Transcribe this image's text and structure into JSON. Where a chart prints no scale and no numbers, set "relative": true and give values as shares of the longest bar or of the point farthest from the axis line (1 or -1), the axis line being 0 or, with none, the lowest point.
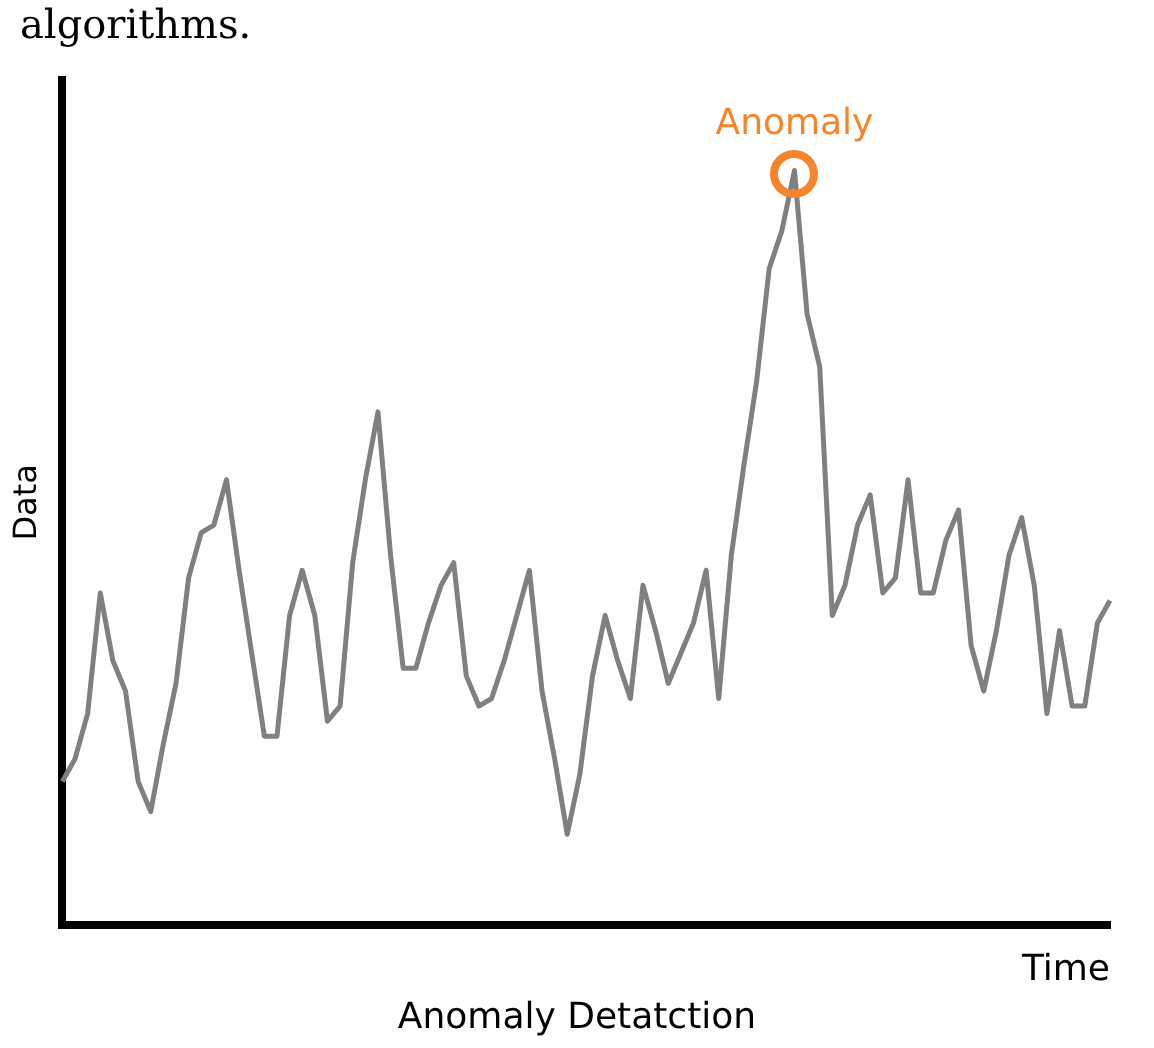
{
  "chart_data": {
    "type": "line",
    "relative": true,
    "title": "Anomaly Detatction",
    "xlabel": "Time",
    "ylabel": "Data",
    "legend": false,
    "grid": false,
    "marker": "none",
    "line_style": "solid",
    "annotations": [
      "algorithms.",
      {
        "text": "Anomaly",
        "y": 1
      }
    ],
    "categories": [
      null,
      null,
      null,
      null,
      null,
      null,
      null,
      null,
      null,
      null,
      null,
      null,
      null,
      null,
      null,
      null,
      null,
      null,
      null,
      null,
      null,
      null,
      null,
      null,
      null,
      null,
      null,
      null,
      null,
      null,
      null,
      null,
      null,
      null,
      null,
      null,
      null,
      null,
      null,
      null,
      null,
      null,
      null,
      null,
      null,
      null,
      null,
      null,
      null,
      null,
      null,
      null,
      null,
      null,
      null,
      null,
      null,
      null,
      null,
      null,
      null,
      null,
      null,
      null,
      null,
      null,
      null,
      null,
      null,
      null,
      null,
      null,
      null,
      null,
      null,
      null,
      null,
      null,
      null,
      null,
      null,
      null,
      null,
      null
    ],
    "series": [
      {
        "color": "#808080",
        "values": [
          0.19,
          0.22,
          0.28,
          0.44,
          0.35,
          0.31,
          0.19,
          0.15,
          0.24,
          0.32,
          0.46,
          0.52,
          0.53,
          0.59,
          0.47,
          0.36,
          0.25,
          0.25,
          0.41,
          0.47,
          0.41,
          0.27,
          0.29,
          0.48,
          0.59,
          0.68,
          0.49,
          0.34,
          0.34,
          0.4,
          0.45,
          0.48,
          0.33,
          0.29,
          0.3,
          0.35,
          0.41,
          0.47,
          0.31,
          0.22,
          0.12,
          0.2,
          0.33,
          0.41,
          0.35,
          0.3,
          0.45,
          0.39,
          0.32,
          0.36,
          0.4,
          0.47,
          0.3,
          0.49,
          0.61,
          0.72,
          0.87,
          0.92,
          1,
          0.81,
          0.74,
          0.41,
          0.45,
          0.53,
          0.57,
          0.44,
          0.46,
          0.59,
          0.44,
          0.44,
          0.51,
          0.55,
          0.37,
          0.31,
          0.39,
          0.49,
          0.54,
          0.45,
          0.28,
          0.39,
          0.29,
          0.29,
          0.4,
          0.43
        ]
      }
    ]
  }
}
